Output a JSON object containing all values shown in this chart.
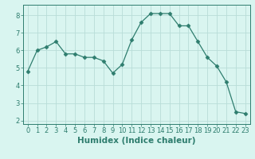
{
  "x": [
    0,
    1,
    2,
    3,
    4,
    5,
    6,
    7,
    8,
    9,
    10,
    11,
    12,
    13,
    14,
    15,
    16,
    17,
    18,
    19,
    20,
    21,
    22,
    23
  ],
  "y": [
    4.8,
    6.0,
    6.2,
    6.5,
    5.8,
    5.8,
    5.6,
    5.6,
    5.4,
    4.7,
    5.2,
    6.6,
    7.6,
    8.1,
    8.1,
    8.1,
    7.4,
    7.4,
    6.5,
    5.6,
    5.1,
    4.2,
    2.5,
    2.4
  ],
  "line_color": "#2e7d6e",
  "marker": "D",
  "marker_size": 2.5,
  "bg_color": "#d9f5f0",
  "grid_color": "#b8ddd8",
  "xlabel": "Humidex (Indice chaleur)",
  "xlim": [
    -0.5,
    23.5
  ],
  "ylim": [
    1.8,
    8.6
  ],
  "yticks": [
    2,
    3,
    4,
    5,
    6,
    7,
    8
  ],
  "xticks": [
    0,
    1,
    2,
    3,
    4,
    5,
    6,
    7,
    8,
    9,
    10,
    11,
    12,
    13,
    14,
    15,
    16,
    17,
    18,
    19,
    20,
    21,
    22,
    23
  ],
  "tick_label_fontsize": 6,
  "xlabel_fontsize": 7.5
}
